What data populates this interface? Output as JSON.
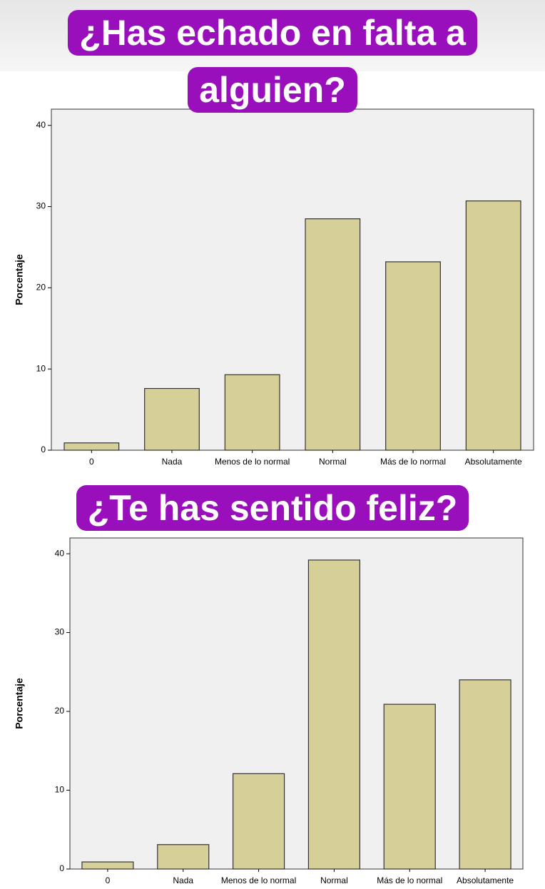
{
  "chart_data": [
    {
      "type": "bar",
      "title": "¿Has echado en falta a alguien?",
      "y_label": "Porcentaje",
      "categories": [
        "0",
        "Nada",
        "Menos de lo normal",
        "Normal",
        "Más de lo normal",
        "Absolutamente"
      ],
      "values": [
        0.9,
        7.6,
        9.3,
        28.5,
        23.2,
        30.7
      ],
      "color": "#d6cf98",
      "ylim": [
        0,
        42
      ],
      "yticks": [
        0,
        10,
        20,
        30,
        40
      ]
    },
    {
      "type": "bar",
      "title": "¿Te has sentido feliz?",
      "y_label": "Porcentaje",
      "categories": [
        "0",
        "Nada",
        "Menos de lo normal",
        "Normal",
        "Más de lo normal",
        "Absolutamente"
      ],
      "values": [
        0.9,
        3.1,
        12.1,
        39.2,
        20.9,
        24.0
      ],
      "color": "#d6cf98",
      "ylim": [
        0,
        42
      ],
      "yticks": [
        0,
        10,
        20,
        30,
        40
      ]
    }
  ]
}
